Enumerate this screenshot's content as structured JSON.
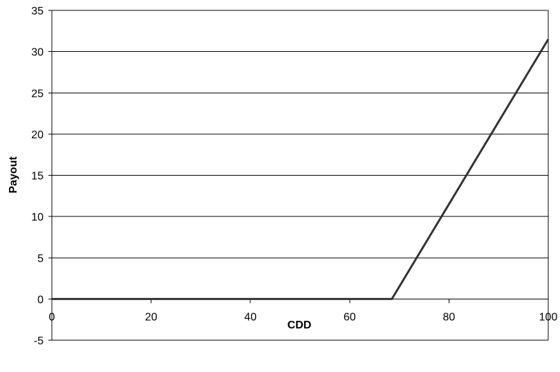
{
  "chart_data": {
    "type": "line",
    "title": "",
    "xlabel": "CDD",
    "ylabel": "Payout",
    "xlim": [
      0,
      100
    ],
    "ylim": [
      -5,
      35
    ],
    "x_ticks": [
      0,
      20,
      40,
      60,
      80,
      100
    ],
    "y_ticks": [
      -5,
      0,
      5,
      10,
      15,
      20,
      25,
      30,
      35
    ],
    "grid": {
      "horizontal": true,
      "vertical": false
    },
    "legend": "none",
    "series": [
      {
        "x": [
          0,
          68.5,
          100
        ],
        "y": [
          0,
          0,
          31.5
        ],
        "color": "#333333"
      }
    ]
  }
}
